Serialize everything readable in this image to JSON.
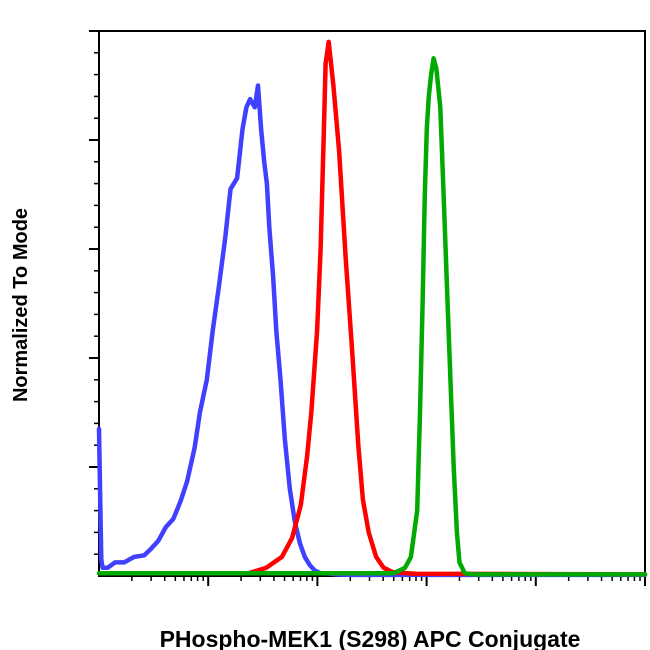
{
  "chart_data": {
    "type": "line",
    "title": "",
    "xlabel": "PHospho-MEK1 (S298) APC Conjugate",
    "ylabel": "Normalized To Mode",
    "x_scale": "log",
    "xlim": [
      1,
      100000
    ],
    "ylim": [
      0,
      100
    ],
    "x_major_ticks": [
      10,
      100,
      1000,
      10000,
      100000
    ],
    "y_major_ticks": [
      20,
      40,
      60,
      80,
      100
    ],
    "grid": false,
    "series": [
      {
        "color": "#4040ff",
        "x": [
          1.0,
          1.03,
          1.05,
          1.08,
          1.12,
          1.2,
          1.4,
          1.7,
          2.1,
          2.6,
          3.0,
          3.5,
          4.1,
          4.8,
          5.6,
          6.4,
          7.5,
          8.4,
          9.7,
          11.0,
          12.5,
          14.3,
          16.0,
          18.4,
          20.6,
          22.4,
          24.2,
          26.7,
          28.6,
          30.5,
          32.6,
          34.5,
          36.3,
          39.3,
          42.0,
          45.9,
          50.4,
          55.9,
          62.1,
          69.1,
          76.7,
          85.2,
          94.7,
          107,
          123,
          150,
          200,
          400,
          1000,
          100000
        ],
        "y": [
          27,
          12,
          3,
          1.5,
          1.5,
          1.5,
          2.5,
          2.5,
          3.5,
          3.8,
          5.0,
          6.5,
          9.0,
          10.5,
          13.8,
          17.3,
          23.5,
          30.0,
          36.0,
          45.0,
          53.0,
          62.0,
          71.0,
          73.0,
          82.0,
          86.0,
          87.5,
          86.0,
          90.0,
          82.0,
          76.0,
          72.0,
          64.0,
          55.0,
          45.0,
          36.0,
          25.0,
          16.0,
          10.0,
          6.0,
          3.5,
          2.0,
          1.0,
          0.5,
          0.5,
          0.3,
          0.2,
          0.2,
          0.2,
          0.2
        ]
      },
      {
        "color": "#ff0000",
        "x": [
          1.0,
          4.8,
          23.3,
          34.0,
          47.3,
          58.6,
          70.4,
          80.5,
          88.0,
          99.3,
          107,
          114,
          119,
          127,
          140,
          158,
          182,
          207,
          237,
          261,
          295,
          345,
          405,
          490,
          780,
          100000
        ],
        "y": [
          0.5,
          0.5,
          0.5,
          1.5,
          3.5,
          7.0,
          13.0,
          22.0,
          30.0,
          45.0,
          60.0,
          80.0,
          94.0,
          98.0,
          90.0,
          78.0,
          58.0,
          42.0,
          24.0,
          14.0,
          8.0,
          3.5,
          1.5,
          0.7,
          0.4,
          0.3
        ]
      },
      {
        "color": "#00aa00",
        "x": [
          1.0,
          500,
          634,
          718,
          820,
          870,
          920,
          963,
          1004,
          1047,
          1100,
          1160,
          1230,
          1335,
          1430,
          1590,
          1770,
          1895,
          2000,
          2240,
          2740,
          100000
        ],
        "y": [
          0.5,
          0.5,
          1.5,
          3.5,
          12.0,
          30.0,
          50.0,
          70.0,
          82.0,
          88.0,
          92.0,
          95.0,
          93.0,
          86.0,
          70.0,
          45.0,
          20.0,
          8.0,
          2.5,
          0.5,
          0.3,
          0.3
        ]
      }
    ]
  }
}
